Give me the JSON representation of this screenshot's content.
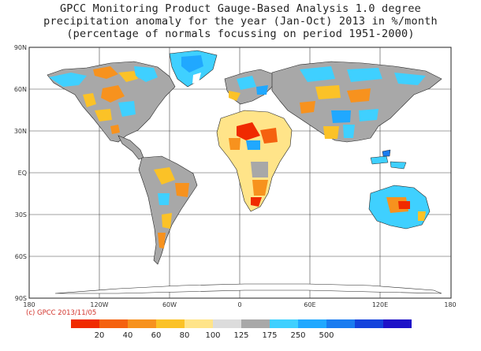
{
  "title": {
    "line1": "GPCC Monitoring Product Gauge-Based Analysis 1.0 degree",
    "line2": "precipitation anomaly for the year (Jan-Oct) 2013 in %/month",
    "line3": "(percentage of normals focussing on period 1951-2000)"
  },
  "lat_labels": [
    "90N",
    "60N",
    "30N",
    "EQ",
    "30S",
    "60S",
    "90S"
  ],
  "lon_labels": [
    "180",
    "120W",
    "60W",
    "0",
    "60E",
    "120E",
    "180"
  ],
  "credit": "(c) GPCC 2013/11/05",
  "colorbar": {
    "colors": [
      "#f02a00",
      "#f5620f",
      "#f7921e",
      "#fbc227",
      "#ffe489",
      "#dcdcdc",
      "#a8a8a8",
      "#3fd0ff",
      "#20a8ff",
      "#1a7cf0",
      "#1443dc",
      "#1e12c8"
    ],
    "labels": [
      "20",
      "40",
      "60",
      "80",
      "100",
      "125",
      "175",
      "250",
      "500"
    ]
  },
  "palette": {
    "dry_strong": "#f02a00",
    "dry": "#f7921e",
    "slightly_dry": "#fbc227",
    "normal": "#a8a8a8",
    "wet": "#3fd0ff",
    "very_wet": "#1a7cf0"
  }
}
